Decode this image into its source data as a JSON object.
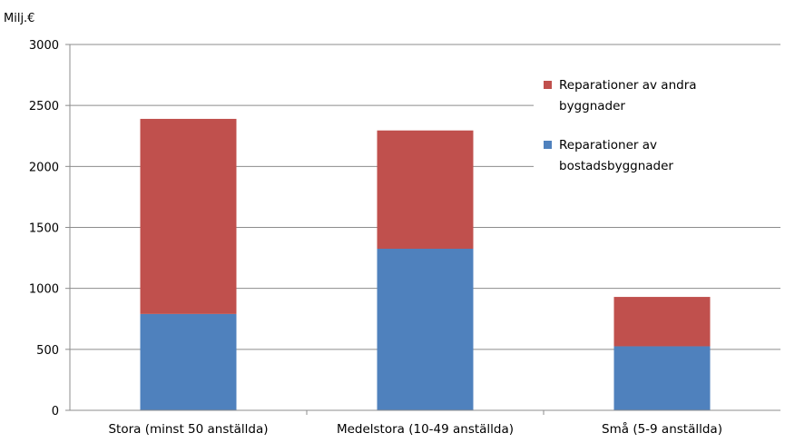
{
  "chart_data": {
    "type": "bar",
    "stacked": true,
    "unit_label": "Milj.€",
    "categories": [
      "Stora (minst 50 anställda)",
      "Medelstora (10-49 anställda)",
      "Små (5-9 anställda)"
    ],
    "series": [
      {
        "name": "Reparationer av bostadsbyggnader",
        "name_lines": [
          "Reparationer av",
          "bostadsbyggnader"
        ],
        "color": "#4f81bd",
        "values": [
          790,
          1325,
          525
        ]
      },
      {
        "name": "Reparationer av andra byggnader",
        "name_lines": [
          "Reparationer av andra",
          "byggnader"
        ],
        "color": "#c0504d",
        "values": [
          1600,
          970,
          405
        ]
      }
    ],
    "ylim": [
      0,
      3000
    ],
    "yticks": [
      "0",
      "500",
      "1000",
      "1500",
      "2000",
      "2500",
      "3000"
    ],
    "grid": true,
    "legend_position": "top-right"
  }
}
